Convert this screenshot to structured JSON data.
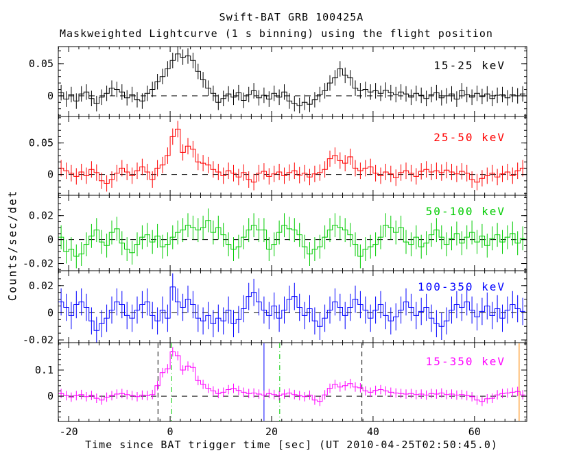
{
  "header": {
    "title": "Swift-BAT GRB 100425A",
    "subtitle": "Maskweighted Lightcurve (1 s binning) using the flight position"
  },
  "axes": {
    "xlabel": "Time since BAT trigger time [sec] (UT 2010-04-25T02:50:45.0)",
    "ylabel": "Counts/sec/det"
  },
  "chart_data": {
    "type": "line",
    "subtype": "step-histogram-with-errorbars",
    "title": "Swift-BAT GRB 100425A",
    "xlabel": "Time since BAT trigger time [sec] (UT 2010-04-25T02:50:45.0)",
    "ylabel": "Counts/sec/det",
    "grid": false,
    "xlim": [
      -22.05,
      70.3
    ],
    "xticks": [
      -20,
      0,
      20,
      40,
      60
    ],
    "x_minor_step": 2,
    "bins": {
      "start": -22,
      "width": 1,
      "count": 92
    },
    "zero_line": {
      "color": "#000000",
      "style": "dashed"
    },
    "panels": [
      {
        "label": "15-25 keV",
        "color": "#000000",
        "ylim": [
          -0.032,
          0.0765
        ],
        "yticks_major": [
          0,
          0.05
        ],
        "ytick_labels": [
          "0",
          "0.05"
        ],
        "y_minor_step": 0.01,
        "yerr": 0.012,
        "values": [
          0.005,
          -0.005,
          0.002,
          -0.008,
          0.003,
          0.006,
          -0.004,
          -0.012,
          -0.002,
          0.004,
          0.012,
          0.01,
          0.006,
          -0.003,
          0.002,
          -0.006,
          -0.008,
          0.004,
          0.01,
          0.022,
          0.03,
          0.042,
          0.055,
          0.065,
          0.06,
          0.062,
          0.055,
          0.038,
          0.025,
          0.012,
          0.004,
          -0.01,
          -0.004,
          0.003,
          -0.002,
          0.005,
          -0.007,
          0.002,
          0.008,
          -0.003,
          0.001,
          -0.005,
          0.004,
          -0.002,
          0.006,
          -0.008,
          -0.012,
          -0.015,
          -0.01,
          -0.013,
          -0.006,
          0.002,
          0.008,
          0.02,
          0.028,
          0.042,
          0.032,
          0.028,
          0.012,
          0.008,
          0.01,
          0.006,
          0.008,
          0.004,
          0.009,
          0.005,
          0.002,
          0.006,
          0.003,
          -0.002,
          0.004,
          0.001,
          -0.004,
          0.002,
          0.005,
          -0.003,
          0.0,
          0.003,
          -0.005,
          0.008,
          0.002,
          -0.002,
          0.004,
          -0.001,
          0.003,
          -0.004,
          0.001,
          0.002,
          -0.003,
          0.002,
          0.0,
          0.003
        ]
      },
      {
        "label": "25-50 keV",
        "color": "#ff0000",
        "ylim": [
          -0.033,
          0.092
        ],
        "yticks_major": [
          0,
          0.05
        ],
        "ytick_labels": [
          "0",
          "0.05"
        ],
        "y_minor_step": 0.01,
        "yerr": 0.013,
        "values": [
          0.01,
          0.006,
          0.002,
          -0.003,
          0.004,
          -0.002,
          0.008,
          0.003,
          -0.01,
          -0.014,
          -0.008,
          0.002,
          0.01,
          0.004,
          -0.002,
          0.006,
          0.012,
          0.004,
          -0.008,
          0.01,
          0.015,
          0.03,
          0.06,
          0.072,
          0.035,
          0.045,
          0.04,
          0.02,
          0.018,
          0.015,
          0.008,
          0.004,
          -0.002,
          0.006,
          0.002,
          -0.004,
          0.003,
          -0.008,
          -0.012,
          0.002,
          0.005,
          -0.003,
          0.001,
          0.004,
          -0.002,
          0.003,
          0.006,
          -0.001,
          0.002,
          -0.004,
          0.001,
          0.003,
          0.008,
          0.025,
          0.03,
          0.022,
          0.018,
          0.028,
          0.01,
          0.006,
          0.01,
          0.012,
          0.002,
          -0.002,
          0.004,
          0.001,
          -0.005,
          0.003,
          0.006,
          0.002,
          -0.003,
          0.005,
          0.008,
          0.004,
          0.006,
          0.003,
          0.007,
          0.004,
          0.001,
          0.005,
          0.002,
          -0.008,
          -0.012,
          -0.006,
          -0.002,
          0.002,
          -0.004,
          0.001,
          0.004,
          -0.002,
          0.006,
          0.01
        ]
      },
      {
        "label": "50-100 keV",
        "color": "#00cc00",
        "ylim": [
          -0.026,
          0.037
        ],
        "yticks_major": [
          -0.02,
          0,
          0.02
        ],
        "ytick_labels": [
          "-0.02",
          "0",
          "0.02"
        ],
        "y_minor_step": 0.005,
        "yerr": 0.01,
        "values": [
          0.002,
          -0.01,
          -0.008,
          -0.014,
          -0.012,
          -0.004,
          0.003,
          0.008,
          -0.002,
          -0.005,
          0.006,
          0.009,
          -0.003,
          -0.008,
          -0.011,
          -0.004,
          0.002,
          0.004,
          -0.002,
          0.003,
          -0.006,
          -0.004,
          0.002,
          0.006,
          0.008,
          0.012,
          0.01,
          0.008,
          0.01,
          0.016,
          0.006,
          0.01,
          0.004,
          -0.004,
          -0.008,
          -0.006,
          0.002,
          0.008,
          0.012,
          0.008,
          0.008,
          -0.008,
          -0.004,
          0.006,
          0.012,
          0.009,
          0.008,
          0.004,
          -0.006,
          -0.012,
          -0.008,
          -0.006,
          0.002,
          0.008,
          0.012,
          0.01,
          0.008,
          0.004,
          -0.004,
          -0.014,
          -0.008,
          -0.006,
          -0.004,
          0.002,
          0.012,
          0.01,
          0.006,
          0.01,
          -0.002,
          -0.004,
          0.002,
          -0.006,
          -0.003,
          0.004,
          0.008,
          0.002,
          -0.004,
          0.001,
          0.005,
          -0.003,
          0.002,
          0.006,
          -0.002,
          0.003,
          -0.005,
          0.001,
          0.004,
          -0.002,
          0.002,
          0.005,
          -0.003,
          0.001
        ]
      },
      {
        "label": "100-350 keV",
        "color": "#0000ff",
        "ylim": [
          -0.022,
          0.031
        ],
        "yticks_major": [
          -0.02,
          0,
          0.02
        ],
        "ytick_labels": [
          "-0.02",
          "0",
          "0.02"
        ],
        "y_minor_step": 0.005,
        "yerr": 0.01,
        "values": [
          0.008,
          0.004,
          -0.002,
          0.006,
          0.008,
          0.004,
          -0.006,
          -0.013,
          -0.008,
          -0.004,
          0.002,
          0.008,
          0.006,
          -0.002,
          -0.004,
          0.002,
          0.006,
          0.008,
          -0.002,
          -0.006,
          0.002,
          -0.004,
          0.019,
          0.008,
          0.004,
          0.01,
          0.006,
          -0.004,
          -0.006,
          -0.002,
          -0.008,
          -0.004,
          -0.006,
          0.002,
          -0.008,
          -0.005,
          0.003,
          0.012,
          0.015,
          0.008,
          0.002,
          -0.002,
          0.005,
          -0.004,
          0.002,
          0.01,
          0.012,
          0.004,
          -0.002,
          0.003,
          -0.006,
          -0.01,
          -0.004,
          0.002,
          0.008,
          0.004,
          -0.002,
          0.004,
          0.01,
          0.006,
          0.002,
          -0.004,
          0.002,
          0.006,
          -0.002,
          -0.006,
          -0.003,
          0.002,
          0.008,
          0.004,
          -0.002,
          0.001,
          0.004,
          -0.004,
          -0.008,
          -0.01,
          -0.006,
          0.002,
          0.006,
          0.004,
          0.008,
          0.002,
          -0.003,
          0.001,
          0.005,
          -0.002,
          0.003,
          -0.004,
          0.002,
          0.006,
          0.003,
          0.001
        ]
      },
      {
        "label": "15-350 keV",
        "color": "#ff00ff",
        "ylim": [
          -0.097,
          0.205
        ],
        "yticks_major": [
          0,
          0.1
        ],
        "ytick_labels": [
          "0",
          "0.1"
        ],
        "y_minor_step": 0.02,
        "yerr": 0.018,
        "values": [
          0.01,
          0.002,
          -0.004,
          0.002,
          0.006,
          -0.002,
          0.003,
          -0.008,
          -0.015,
          -0.004,
          0.002,
          0.008,
          0.01,
          0.006,
          0.002,
          -0.002,
          0.004,
          0.002,
          0.006,
          0.04,
          0.09,
          0.105,
          0.17,
          0.155,
          0.1,
          0.115,
          0.11,
          0.06,
          0.045,
          0.03,
          0.02,
          0.01,
          0.015,
          0.025,
          0.03,
          0.022,
          0.015,
          0.01,
          0.012,
          0.008,
          0.004,
          0.01,
          0.006,
          0.002,
          0.008,
          0.012,
          0.006,
          0.002,
          -0.002,
          0.004,
          -0.015,
          -0.02,
          0.005,
          0.03,
          0.045,
          0.035,
          0.04,
          0.048,
          0.035,
          0.032,
          0.02,
          0.015,
          0.022,
          0.025,
          0.02,
          0.015,
          0.012,
          0.01,
          0.008,
          0.01,
          0.006,
          0.008,
          0.004,
          0.01,
          0.008,
          0.012,
          0.006,
          0.008,
          0.004,
          0.006,
          0.002,
          -0.002,
          -0.015,
          -0.02,
          -0.01,
          -0.008,
          0.005,
          0.01,
          0.012,
          0.015,
          0.018,
          0.005
        ]
      }
    ],
    "trigger_markers": [
      {
        "t": -2.4,
        "color": "#000000",
        "style": "dashed"
      },
      {
        "t": 0.3,
        "color": "#00cc00",
        "style": "dashdot"
      },
      {
        "t": 18.5,
        "color": "#0000ff",
        "style": "solid"
      },
      {
        "t": 21.6,
        "color": "#00cc00",
        "style": "dashdot"
      },
      {
        "t": 37.8,
        "color": "#000000",
        "style": "dashed"
      },
      {
        "t": 68.8,
        "color": "#ff8800",
        "style": "solid"
      }
    ]
  }
}
